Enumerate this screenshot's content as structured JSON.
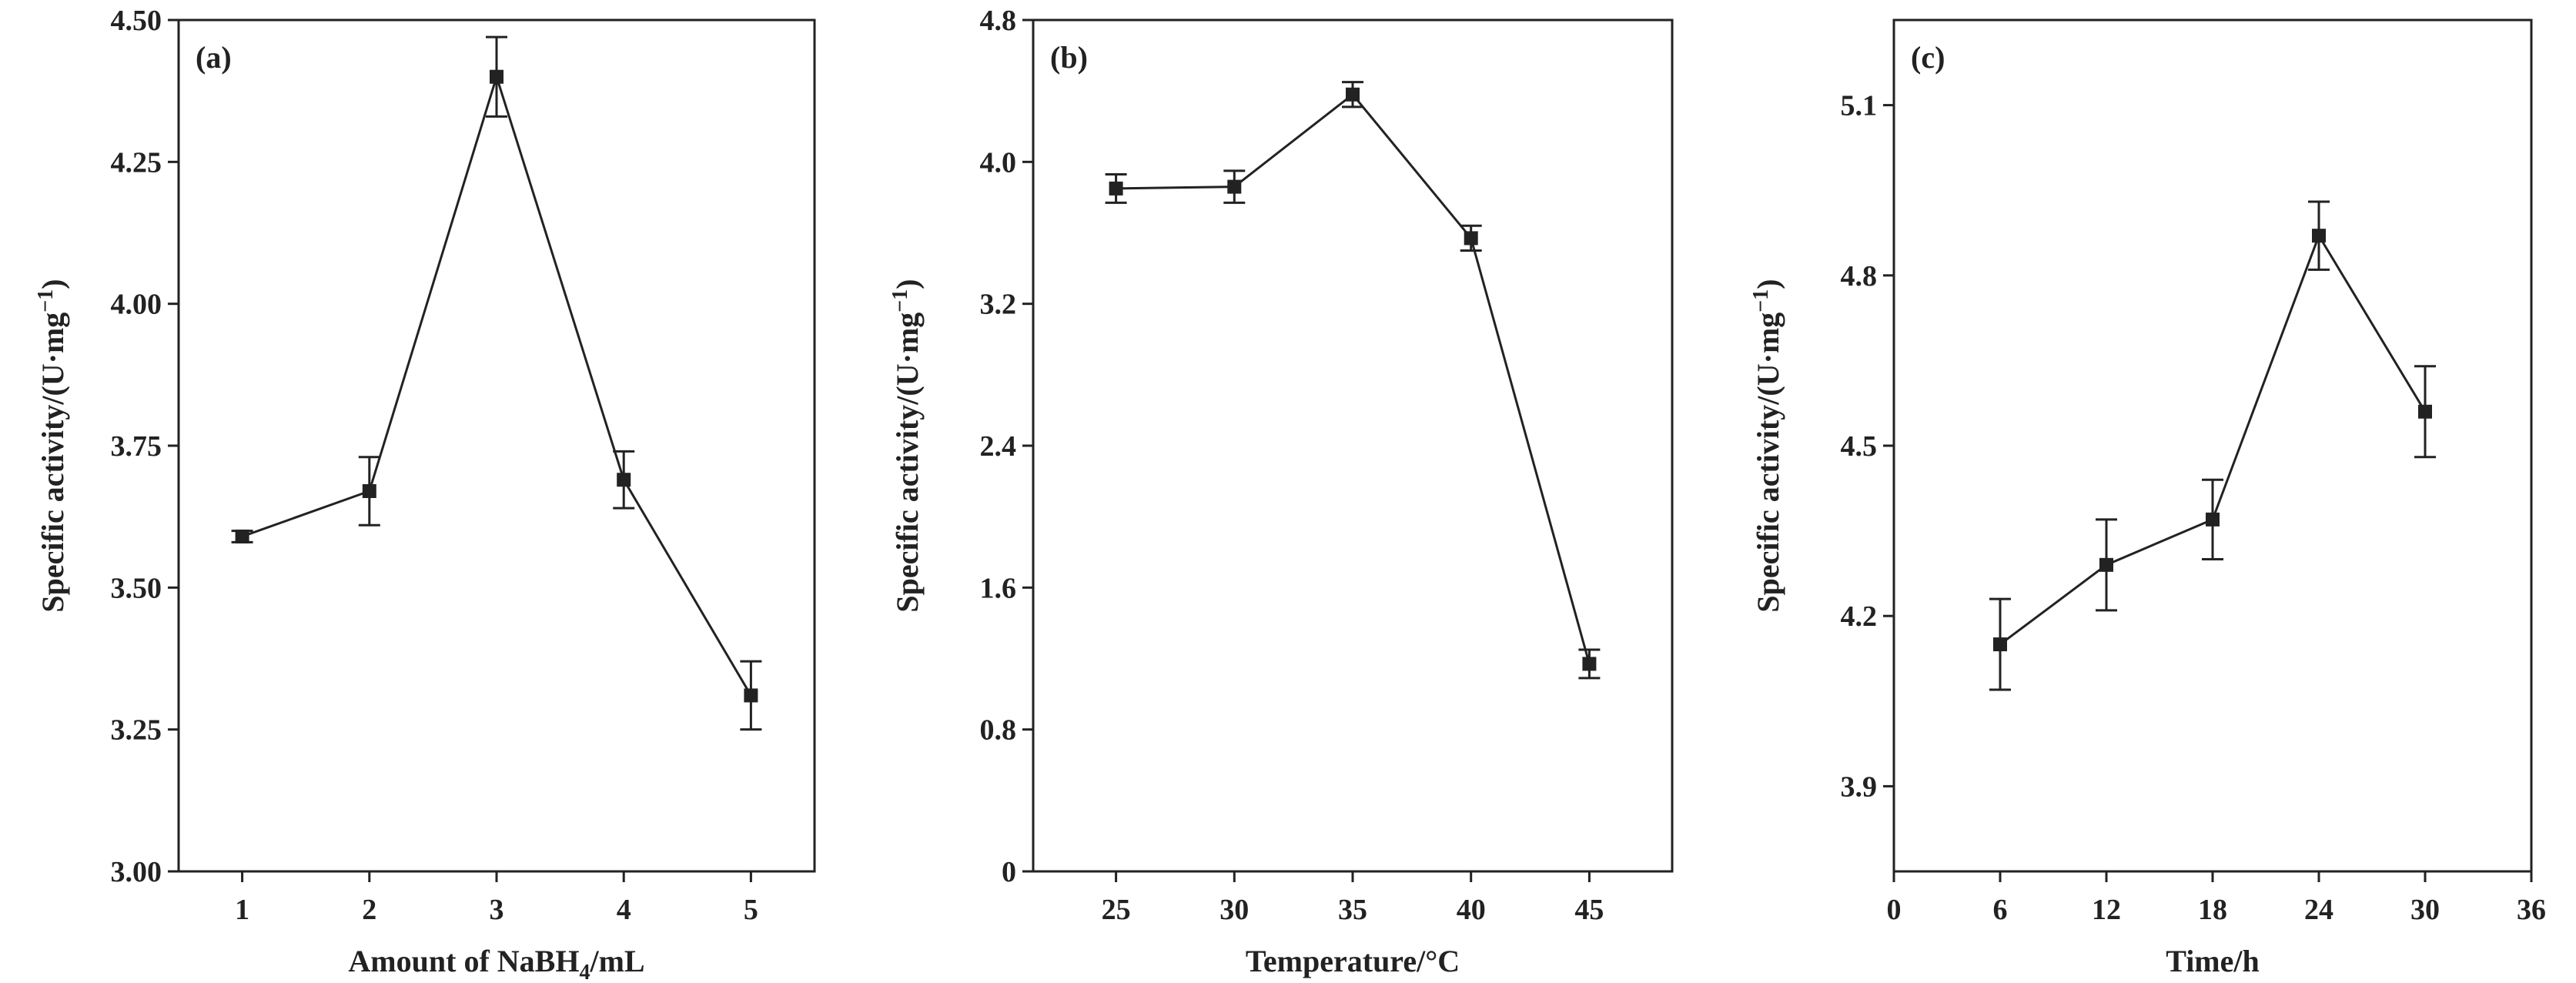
{
  "chart_data": [
    {
      "type": "line",
      "panel_label": "(a)",
      "xlabel_parts": [
        "Amount of NaBH",
        "4",
        "/mL"
      ],
      "ylabel_parts": [
        "Specific activity/(U·mg",
        "−1",
        ")"
      ],
      "x": [
        1,
        2,
        3,
        4,
        5
      ],
      "x_ticks": [
        "1",
        "2",
        "3",
        "4",
        "5"
      ],
      "xlim": [
        0.5,
        5.5
      ],
      "y_ticks": [
        "3.00",
        "3.25",
        "3.50",
        "3.75",
        "4.00",
        "4.25",
        "4.50"
      ],
      "ylim": [
        3.0,
        4.5
      ],
      "series": [
        {
          "values": [
            3.59,
            3.67,
            4.4,
            3.69,
            3.31
          ],
          "errors": [
            0.01,
            0.06,
            0.07,
            0.05,
            0.06
          ]
        }
      ],
      "grid": false
    },
    {
      "type": "line",
      "panel_label": "(b)",
      "xlabel_parts": [
        "Temperature/°C",
        "",
        ""
      ],
      "ylabel_parts": [
        "Specific activity/(U·mg",
        "−1",
        ")"
      ],
      "x": [
        25,
        30,
        35,
        40,
        45
      ],
      "x_ticks": [
        "25",
        "30",
        "35",
        "40",
        "45"
      ],
      "xlim": [
        21.5,
        48.5
      ],
      "y_ticks": [
        "0",
        "0.8",
        "1.6",
        "2.4",
        "3.2",
        "4.0",
        "4.8"
      ],
      "ylim": [
        0,
        4.8
      ],
      "series": [
        {
          "values": [
            3.85,
            3.86,
            4.38,
            3.57,
            1.17
          ],
          "errors": [
            0.08,
            0.09,
            0.07,
            0.07,
            0.08
          ]
        }
      ],
      "grid": false
    },
    {
      "type": "line",
      "panel_label": "(c)",
      "xlabel_parts": [
        "Time/h",
        "",
        ""
      ],
      "ylabel_parts": [
        "Specific activity/(U·mg",
        "−1",
        ")"
      ],
      "x": [
        6,
        12,
        18,
        24,
        30
      ],
      "x_ticks": [
        "0",
        "6",
        "12",
        "18",
        "24",
        "30",
        "36"
      ],
      "x_tick_values": [
        0,
        6,
        12,
        18,
        24,
        30,
        36
      ],
      "xlim": [
        0,
        36
      ],
      "y_ticks": [
        "3.9",
        "4.2",
        "4.5",
        "4.8",
        "5.1"
      ],
      "y_tick_values": [
        3.9,
        4.2,
        4.5,
        4.8,
        5.1
      ],
      "ylim": [
        3.75,
        5.25
      ],
      "series": [
        {
          "values": [
            4.15,
            4.29,
            4.37,
            4.87,
            4.56
          ],
          "errors": [
            0.08,
            0.08,
            0.07,
            0.06,
            0.08
          ]
        }
      ],
      "grid": false
    }
  ]
}
